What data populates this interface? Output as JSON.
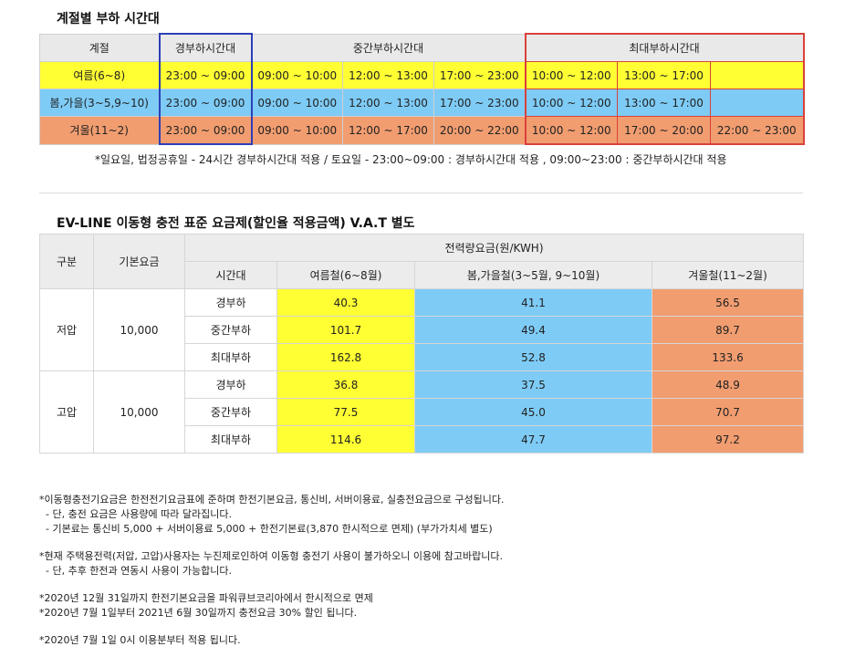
{
  "section1": {
    "title": "계절별 부하 시간대",
    "headers": [
      "계절",
      "경부하시간대",
      "중간부하시간대",
      "최대부하시간대"
    ],
    "rows": [
      {
        "season": "여름(6~8)",
        "light": "23:00 ~ 09:00",
        "mid": [
          "09:00 ~ 10:00",
          "12:00 ~ 13:00",
          "17:00 ~ 23:00"
        ],
        "peak": [
          "10:00 ~ 12:00",
          "13:00 ~ 17:00",
          ""
        ]
      },
      {
        "season": "봄,가을(3~5,9~10)",
        "light": "23:00 ~ 09:00",
        "mid": [
          "09:00 ~ 10:00",
          "12:00 ~ 13:00",
          "17:00 ~ 23:00"
        ],
        "peak": [
          "10:00 ~ 12:00",
          "13:00 ~ 17:00",
          ""
        ]
      },
      {
        "season": "겨울(11~2)",
        "light": "23:00 ~ 09:00",
        "mid": [
          "09:00 ~ 10:00",
          "12:00 ~ 17:00",
          "20:00 ~ 22:00"
        ],
        "peak": [
          "10:00 ~ 12:00",
          "17:00 ~ 20:00",
          "22:00 ~ 23:00"
        ]
      }
    ],
    "note": "*일요일, 법정공휴일 - 24시간 경부하시간대 적용 / 토요일 - 23:00~09:00 : 경부하시간대 적용 , 09:00~23:00 : 중간부하시간대 적용"
  },
  "section2": {
    "title": "EV-LINE 이동형 충전 표준 요금제(할인율 적용금액) V.A.T 별도",
    "headers": {
      "division": "구분",
      "base_fee": "기본요금",
      "energy_fee": "전력량요금(원/KWH)",
      "time_band": "시간대",
      "summer": "여름철(6~8월)",
      "spring": "봄,가을철(3~5월, 9~10월)",
      "winter": "겨울철(11~2월)"
    },
    "groups": [
      {
        "division": "저압",
        "base_fee": "10,000",
        "rows": [
          {
            "band": "경부하",
            "summer": "40.3",
            "spring": "41.1",
            "winter": "56.5"
          },
          {
            "band": "중간부하",
            "summer": "101.7",
            "spring": "49.4",
            "winter": "89.7"
          },
          {
            "band": "최대부하",
            "summer": "162.8",
            "spring": "52.8",
            "winter": "133.6"
          }
        ]
      },
      {
        "division": "고압",
        "base_fee": "10,000",
        "rows": [
          {
            "band": "경부하",
            "summer": "36.8",
            "spring": "37.5",
            "winter": "48.9"
          },
          {
            "band": "중간부하",
            "summer": "77.5",
            "spring": "45.0",
            "winter": "70.7"
          },
          {
            "band": "최대부하",
            "summer": "114.6",
            "spring": "47.7",
            "winter": "97.2"
          }
        ]
      }
    ]
  },
  "footnotes": {
    "block1": [
      "*이동형충전기요금은 한전전기요금표에 준하며 한전기본요금, 통신비, 서버이용료, 실충전요금으로 구성됩니다.",
      "  - 단, 충전 요금은 사용량에 따라 달라집니다.",
      "  - 기본료는 통신비 5,000 + 서버이용료 5,000 + 한전기본료(3,870 한시적으로 면제) (부가가치세 별도)"
    ],
    "block2": [
      "*현재 주택용전력(저압, 고압)사용자는 누진제로인하여 이동형 충전기 사용이 불가하오니 이용에 참고바랍니다.",
      "  - 단, 추후 한전과 연동시 사용이 가능합니다."
    ],
    "block3": [
      "*2020년 12월 31일까지 한전기본요금을 파워큐브코리아에서 한시적으로 면제",
      "*2020년 7월 1일부터 2021년 6월 30일까지 충전요금 30% 할인 됩니다."
    ],
    "block4": [
      "*2020년 7월 1일 0시 이용분부터 적용 됩니다."
    ]
  }
}
